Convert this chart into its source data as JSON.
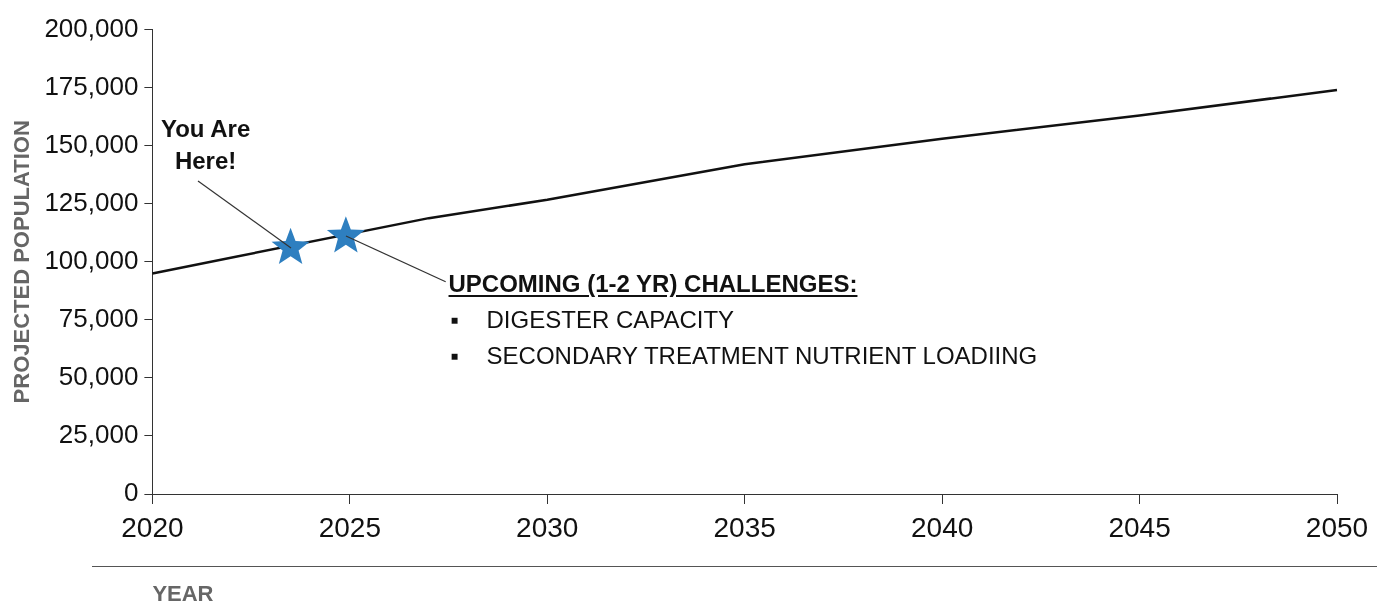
{
  "chart_data": {
    "type": "line",
    "xlabel": "YEAR",
    "ylabel": "PROJECTED POPULATION",
    "xlim": [
      2020,
      2050
    ],
    "xticks": [
      2020,
      2025,
      2030,
      2035,
      2040,
      2045,
      2050
    ],
    "ylim": [
      0,
      200000
    ],
    "yticks": [
      0,
      {
        "value": 25000,
        "label": "25,000"
      },
      {
        "value": 50000,
        "label": "50,000"
      },
      {
        "value": 75000,
        "label": "75,000"
      },
      {
        "value": 100000,
        "label": "100,000"
      },
      {
        "value": 125000,
        "label": "125,000"
      },
      {
        "value": 150000,
        "label": "150,000"
      },
      {
        "value": 175000,
        "label": "175,000"
      },
      {
        "value": 200000,
        "label": "200,000"
      }
    ],
    "grid": false,
    "legend": false,
    "marker": "none",
    "line_style": "solid",
    "series": [
      {
        "color": "#111111",
        "x": [
          2020,
          2027,
          2030,
          2035,
          2040,
          2045,
          2050
        ],
        "values": [
          95000,
          118800,
          126700,
          142000,
          153000,
          163000,
          174000
        ]
      },
      {
        "type": "scatter",
        "marker": "star",
        "color": "#2e7fc0",
        "x": [
          2023.5,
          2024.9
        ],
        "values": [
          106000,
          111000
        ]
      }
    ],
    "annotations": [
      {
        "text": "You Are Here!",
        "x": 2023.5,
        "y": 106000
      },
      {
        "text": "UPCOMING (1-2 YR) CHALLENGES:",
        "x": 2024.9,
        "y": 111000
      },
      "▪ DIGESTER CAPACITY",
      "▪ SECONDARY TREATMENT NUTRIENT LOADIING"
    ]
  }
}
